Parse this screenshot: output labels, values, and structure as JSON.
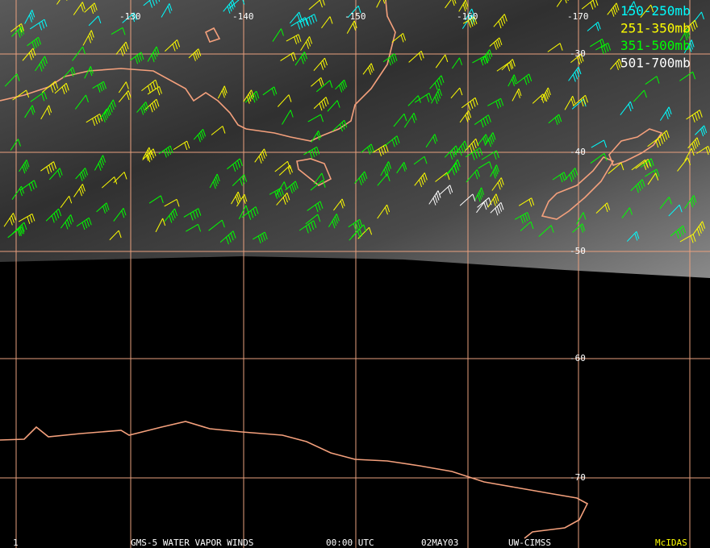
{
  "legend": {
    "items": [
      {
        "label": "150-250mb",
        "color": "#00ffff"
      },
      {
        "label": "251-350mb",
        "color": "#ffff00"
      },
      {
        "label": "351-500mb",
        "color": "#00ff00"
      },
      {
        "label": "501-700mb",
        "color": "#ffffff"
      }
    ]
  },
  "grid": {
    "longitudes": [
      "-130",
      "-140",
      "-150",
      "-160",
      "-170"
    ],
    "latitudes": [
      "-30",
      "-40",
      "-50",
      "-60",
      "-70"
    ]
  },
  "footer": {
    "frame": "1",
    "title": "GMS-5 WATER VAPOR WINDS",
    "time": "00:00 UTC",
    "date": "02MAY03",
    "source": "UW-CIMSS",
    "software": "McIDAS"
  }
}
